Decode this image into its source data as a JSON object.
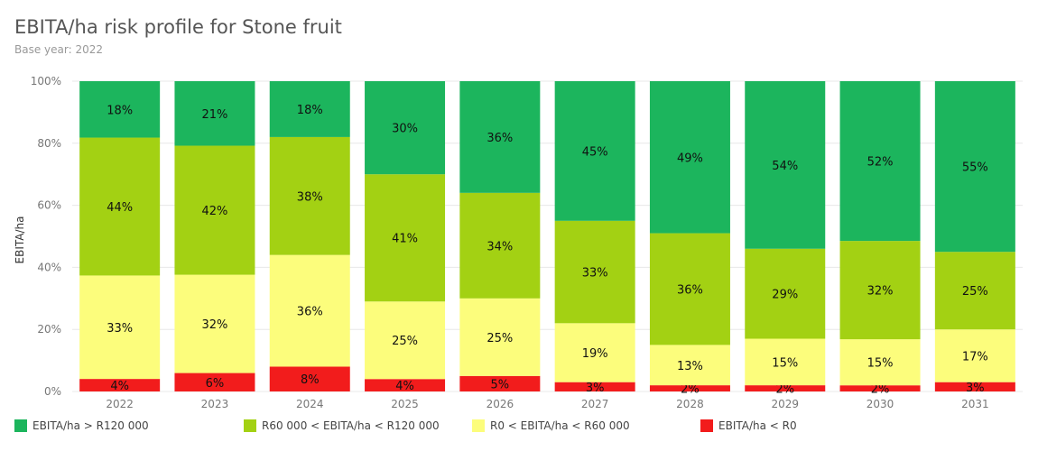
{
  "header": {
    "title": "EBITA/ha risk profile for Stone fruit",
    "subtitle": "Base year: 2022"
  },
  "chart_data": {
    "type": "bar",
    "stacked": true,
    "normalized": true,
    "title": "EBITA/ha risk profile for Stone fruit",
    "subtitle": "Base year: 2022",
    "ylabel": "EBITA/ha",
    "xlabel": "",
    "ylim": [
      0,
      100
    ],
    "yticks": [
      "0%",
      "20%",
      "40%",
      "60%",
      "80%",
      "100%"
    ],
    "categories": [
      "2022",
      "2023",
      "2024",
      "2025",
      "2026",
      "2027",
      "2028",
      "2029",
      "2030",
      "2031"
    ],
    "legend_position": "bottom",
    "grid": true,
    "series": [
      {
        "name": "EBITA/ha < R0",
        "color": "#f21c1c",
        "values": [
          4,
          6,
          8,
          4,
          5,
          3,
          2,
          2,
          2,
          3
        ]
      },
      {
        "name": "R0 < EBITA/ha < R60 000",
        "color": "#fcfd7c",
        "values": [
          33,
          32,
          36,
          25,
          25,
          19,
          13,
          15,
          15,
          17
        ]
      },
      {
        "name": "R60 000 < EBITA/ha < R120 000",
        "color": "#a3d113",
        "values": [
          44,
          42,
          38,
          41,
          34,
          33,
          36,
          29,
          32,
          25
        ]
      },
      {
        "name": "EBITA/ha > R120 000",
        "color": "#1cb55d",
        "values": [
          18,
          21,
          18,
          30,
          36,
          45,
          49,
          54,
          52,
          55
        ]
      }
    ],
    "legend_order": [
      3,
      2,
      1,
      0
    ]
  }
}
